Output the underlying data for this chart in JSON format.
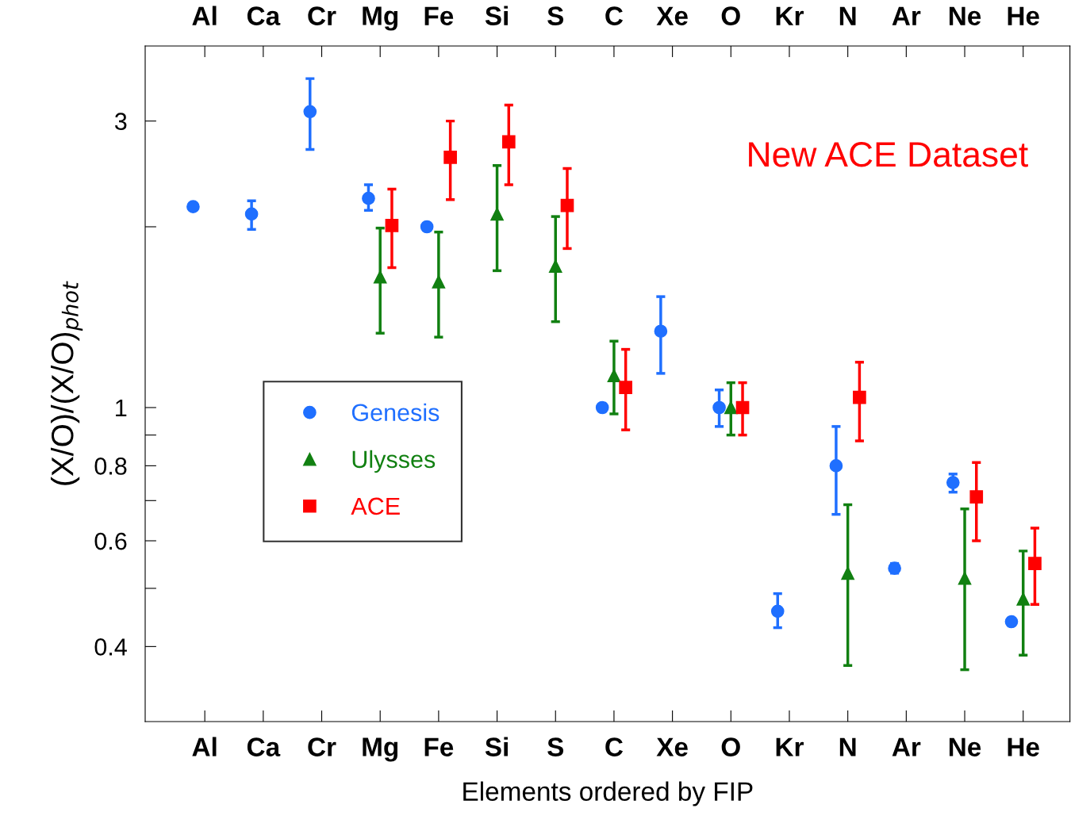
{
  "chart_data": {
    "type": "scatter",
    "xlabel": "Elements ordered by FIP",
    "ylabel": "(X/O)/(X/O)$_{phot}$",
    "categories": [
      "Al",
      "Ca",
      "Cr",
      "Mg",
      "Fe",
      "Si",
      "S",
      "C",
      "Xe",
      "O",
      "Kr",
      "N",
      "Ar",
      "Ne",
      "He"
    ],
    "log": "y",
    "ylim": [
      0.3,
      4
    ],
    "yticks": [
      0.4,
      {
        "value": 0.5,
        "label": null
      },
      0.6,
      {
        "value": 0.7,
        "label": null
      },
      0.8,
      {
        "value": 0.9,
        "label": null
      },
      1,
      {
        "value": 2,
        "label": null
      },
      3
    ],
    "grid": false,
    "legend": "center left",
    "annotations": [
      "New ACE Dataset"
    ],
    "series": [
      {
        "name": "Genesis",
        "color": "#1f6fff",
        "marker": "circle",
        "values": [
          2.16,
          2.1,
          3.11,
          2.23,
          2.0,
          null,
          null,
          1.0,
          1.34,
          1.0,
          0.458,
          0.8,
          0.54,
          0.75,
          0.44
        ],
        "errors": [
          null,
          [
            1.98,
            2.21
          ],
          [
            2.69,
            3.53
          ],
          [
            2.13,
            2.35
          ],
          null,
          null,
          null,
          null,
          [
            1.14,
            1.53
          ],
          [
            0.93,
            1.07
          ],
          [
            0.43,
            0.49
          ],
          [
            0.664,
            0.93
          ],
          [
            0.53,
            0.55
          ],
          [
            0.723,
            0.775
          ],
          null
        ]
      },
      {
        "name": "Ulysses",
        "color": "#118011",
        "marker": "triangle",
        "values": [
          null,
          null,
          null,
          1.65,
          1.62,
          2.1,
          1.72,
          1.13,
          null,
          1.0,
          null,
          0.53,
          null,
          0.52,
          0.48
        ],
        "errors": [
          null,
          null,
          null,
          [
            1.33,
            1.99
          ],
          [
            1.31,
            1.96
          ],
          [
            1.69,
            2.53
          ],
          [
            1.39,
            2.08
          ],
          [
            0.976,
            1.29
          ],
          null,
          [
            0.9,
            1.1
          ],
          null,
          [
            0.372,
            0.689
          ],
          null,
          [
            0.366,
            0.678
          ],
          [
            0.387,
            0.577
          ]
        ]
      },
      {
        "name": "ACE",
        "color": "#ff0000",
        "marker": "square",
        "values": [
          null,
          null,
          null,
          2.01,
          2.61,
          2.77,
          2.17,
          1.08,
          null,
          1.0,
          null,
          1.04,
          null,
          0.71,
          0.55
        ],
        "errors": [
          null,
          null,
          null,
          [
            1.71,
            2.31
          ],
          [
            2.22,
            3.0
          ],
          [
            2.35,
            3.19
          ],
          [
            1.84,
            2.5
          ],
          [
            0.918,
            1.25
          ],
          null,
          [
            0.9,
            1.1
          ],
          null,
          [
            0.88,
            1.19
          ],
          null,
          [
            0.6,
            0.81
          ],
          [
            0.47,
            0.63
          ]
        ]
      }
    ]
  }
}
